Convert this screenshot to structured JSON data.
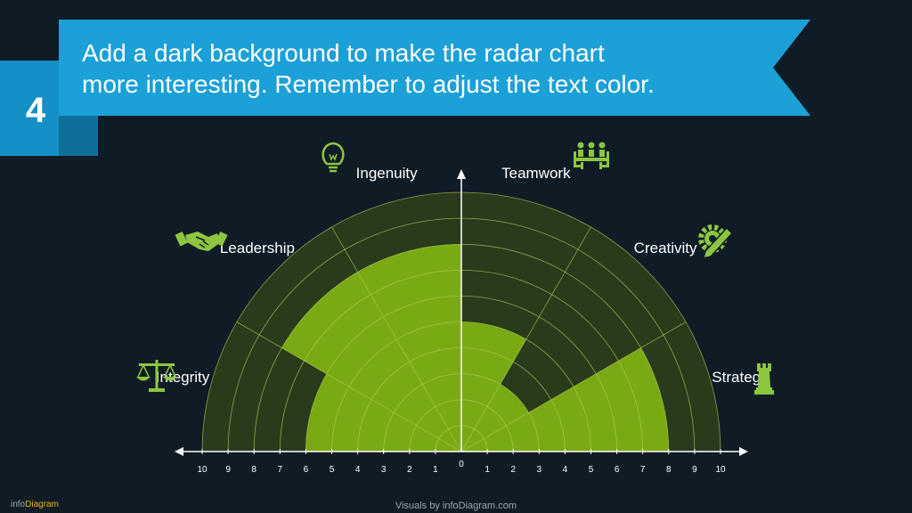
{
  "slide": {
    "number": "4",
    "title_line1": "Add a dark background to make the radar chart",
    "title_line2": "more interesting. Remember to adjust the text color.",
    "footer": "Visuals by infoDiagram.com",
    "logo_info": "info",
    "logo_diagram": "Diagram"
  },
  "colors": {
    "background": "#0f1c26",
    "banner": "#1ba0d8",
    "banner_dark": "#106f9a",
    "fill": "#7aaa13",
    "track": "#2a3b1c",
    "grid": "#a8cb55",
    "icon": "#8cc63f",
    "axis": "#ffffff"
  },
  "chart_data": {
    "type": "radar",
    "shape": "half-circle (polar area)",
    "max": 10,
    "categories": [
      "Integrity",
      "Leadership",
      "Ingenuity",
      "Teamwork",
      "Creativity",
      "Strategy"
    ],
    "values": [
      6,
      8,
      8,
      5,
      3,
      8
    ],
    "axis_ticks_left": [
      "10",
      "9",
      "8",
      "7",
      "6",
      "5",
      "4",
      "3",
      "2",
      "1"
    ],
    "axis_ticks_right": [
      "1",
      "2",
      "3",
      "4",
      "5",
      "6",
      "7",
      "8",
      "9",
      "10"
    ],
    "origin_label": "0",
    "icons": [
      "scales-icon",
      "handshake-icon",
      "lightbulb-icon",
      "team-meeting-icon",
      "gear-pencil-icon",
      "chess-rook-icon"
    ]
  }
}
